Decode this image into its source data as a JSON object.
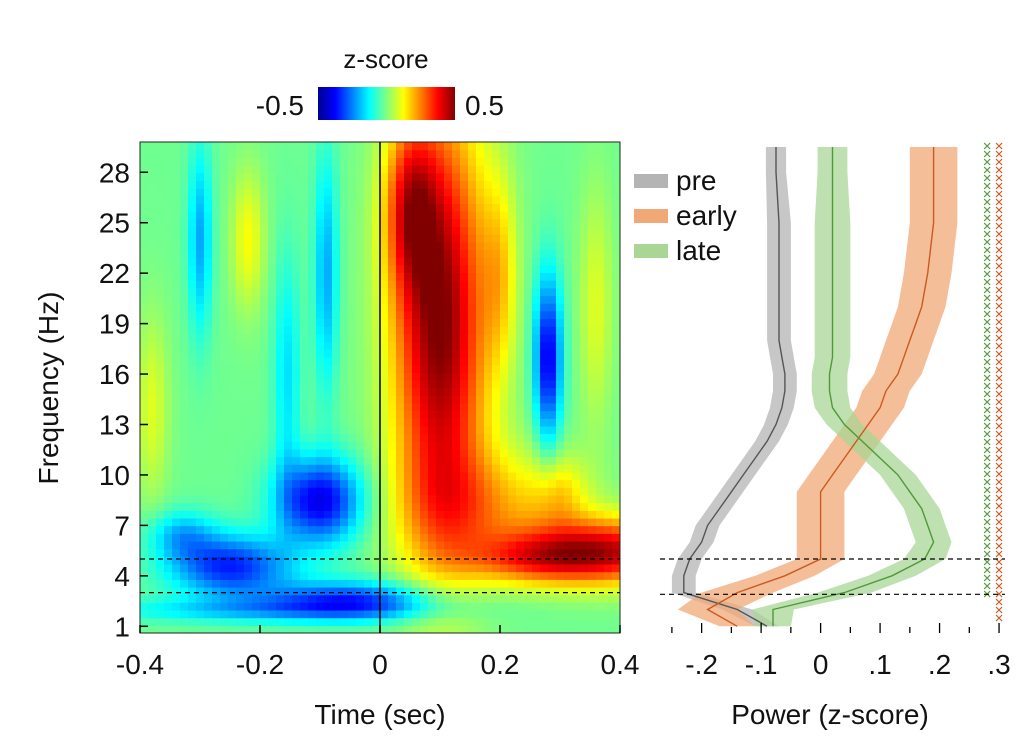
{
  "chart_data": [
    {
      "type": "heatmap",
      "title": "",
      "xlabel": "Time (sec)",
      "ylabel": "Frequency (Hz)",
      "xlim": [
        -0.4,
        0.4
      ],
      "ylim": [
        0.6,
        29.8
      ],
      "x_tick_labels": [
        "-0.4",
        "-0.2",
        "0",
        "0.2",
        "0.4"
      ],
      "x_ticks": [
        -0.4,
        -0.2,
        0,
        0.2,
        0.4
      ],
      "y_ticks": [
        1,
        4,
        7,
        10,
        13,
        16,
        19,
        22,
        25,
        28
      ],
      "y_tick_labels": [
        "1",
        "4",
        "7",
        "10",
        "13",
        "16",
        "19",
        "22",
        "25",
        "28"
      ],
      "vertical_line_at": 0,
      "dashed_lines_at_hz": [
        5,
        3
      ],
      "colorbar": {
        "title": "z-score",
        "min_label": "-0.5",
        "max_label": "0.5",
        "range": [
          -0.5,
          0.5
        ]
      },
      "blobs": [
        {
          "t": 0.1,
          "f": 19,
          "st": 0.055,
          "sf": 9,
          "v": 0.95
        },
        {
          "t": 0.05,
          "f": 26,
          "st": 0.03,
          "sf": 3.5,
          "v": 0.5
        },
        {
          "t": 0.18,
          "f": 8,
          "st": 0.1,
          "sf": 2.5,
          "v": 0.35
        },
        {
          "t": 0.38,
          "f": 5.5,
          "st": 0.1,
          "sf": 1.4,
          "v": 0.75
        },
        {
          "t": 0.26,
          "f": 5,
          "st": 0.08,
          "sf": 1.0,
          "v": 0.35
        },
        {
          "t": -0.1,
          "f": 8.5,
          "st": 0.05,
          "sf": 1.8,
          "v": -0.7
        },
        {
          "t": -0.25,
          "f": 4.6,
          "st": 0.07,
          "sf": 1.3,
          "v": -0.6
        },
        {
          "t": -0.05,
          "f": 2.6,
          "st": 0.1,
          "sf": 0.8,
          "v": -0.55
        },
        {
          "t": 0.28,
          "f": 17,
          "st": 0.016,
          "sf": 3.5,
          "v": -0.7
        },
        {
          "t": -0.3,
          "f": 24,
          "st": 0.014,
          "sf": 4.0,
          "v": -0.35
        },
        {
          "t": -0.09,
          "f": 22,
          "st": 0.014,
          "sf": 5.0,
          "v": -0.35
        },
        {
          "t": -0.155,
          "f": 16,
          "st": 0.016,
          "sf": 5.0,
          "v": -0.25
        },
        {
          "t": -0.33,
          "f": 6.5,
          "st": 0.04,
          "sf": 1.0,
          "v": -0.3
        },
        {
          "t": -0.2,
          "f": 2.0,
          "st": 0.2,
          "sf": 0.5,
          "v": -0.25
        },
        {
          "t": -0.22,
          "f": 24,
          "st": 0.02,
          "sf": 3.0,
          "v": 0.25
        },
        {
          "t": -0.38,
          "f": 14,
          "st": 0.02,
          "sf": 4.0,
          "v": 0.2
        },
        {
          "t": 0.2,
          "f": 22,
          "st": 0.02,
          "sf": 4.0,
          "v": 0.25
        },
        {
          "t": 0.36,
          "f": 20,
          "st": 0.02,
          "sf": 5.0,
          "v": 0.2
        },
        {
          "t": 0.3,
          "f": 9,
          "st": 0.03,
          "sf": 1.5,
          "v": 0.2
        }
      ]
    },
    {
      "type": "line",
      "xlabel": "Power (z-score)",
      "ylabel": "",
      "xlim": [
        -0.27,
        0.31
      ],
      "ylim": [
        0.6,
        29.8
      ],
      "x_ticks": [
        -0.2,
        -0.1,
        0,
        0.1,
        0.2,
        0.3
      ],
      "x_tick_labels": [
        "-.2",
        "-.1",
        "0",
        ".1",
        ".2",
        ".3"
      ],
      "dashed_lines_at_hz": [
        5,
        2.9
      ],
      "legend": {
        "position": "top-left",
        "entries": [
          "pre",
          "early",
          "late"
        ]
      },
      "freq": [
        1,
        2,
        3,
        4,
        5,
        6,
        7,
        8,
        9,
        10,
        11,
        12,
        13,
        14,
        15,
        16,
        17,
        18,
        19,
        20,
        22,
        25,
        28,
        29.5
      ],
      "series": [
        {
          "name": "pre",
          "color": "#555555",
          "band_color": "#b4b4b4",
          "mean": [
            -0.09,
            -0.14,
            -0.23,
            -0.23,
            -0.22,
            -0.2,
            -0.19,
            -0.17,
            -0.15,
            -0.13,
            -0.11,
            -0.09,
            -0.075,
            -0.065,
            -0.06,
            -0.06,
            -0.065,
            -0.07,
            -0.07,
            -0.07,
            -0.07,
            -0.07,
            -0.075,
            -0.075
          ],
          "sem": [
            0.02,
            0.025,
            0.02,
            0.02,
            0.02,
            0.02,
            0.02,
            0.02,
            0.02,
            0.02,
            0.02,
            0.02,
            0.02,
            0.02,
            0.02,
            0.02,
            0.02,
            0.02,
            0.02,
            0.02,
            0.02,
            0.02,
            0.017,
            0.017
          ]
        },
        {
          "name": "early",
          "color": "#cc5a1e",
          "band_color": "#f0a876",
          "mean": [
            -0.14,
            -0.19,
            -0.14,
            -0.06,
            0.0,
            0.0,
            0.0,
            0.0,
            0.0,
            0.02,
            0.04,
            0.06,
            0.08,
            0.1,
            0.11,
            0.13,
            0.14,
            0.15,
            0.16,
            0.17,
            0.18,
            0.19,
            0.19,
            0.19
          ],
          "sem": [
            0.03,
            0.05,
            0.06,
            0.05,
            0.04,
            0.04,
            0.04,
            0.04,
            0.04,
            0.04,
            0.04,
            0.04,
            0.04,
            0.04,
            0.04,
            0.04,
            0.04,
            0.04,
            0.04,
            0.04,
            0.04,
            0.04,
            0.04,
            0.04
          ]
        },
        {
          "name": "late",
          "color": "#4e9a3a",
          "band_color": "#a9d595",
          "mean": [
            -0.08,
            -0.08,
            0.04,
            0.12,
            0.175,
            0.19,
            0.18,
            0.17,
            0.15,
            0.13,
            0.1,
            0.07,
            0.04,
            0.02,
            0.015,
            0.015,
            0.02,
            0.02,
            0.02,
            0.02,
            0.02,
            0.02,
            0.02,
            0.02
          ],
          "sem": [
            0.03,
            0.035,
            0.045,
            0.04,
            0.035,
            0.03,
            0.03,
            0.03,
            0.03,
            0.03,
            0.03,
            0.03,
            0.03,
            0.03,
            0.03,
            0.03,
            0.03,
            0.03,
            0.03,
            0.03,
            0.03,
            0.03,
            0.025,
            0.025
          ]
        }
      ],
      "significance_markers": [
        {
          "series": "late",
          "color": "#4e9a3a",
          "x": 0.28,
          "from_hz": 2.9,
          "to_hz": 29.8,
          "symbol": "x"
        },
        {
          "series": "early",
          "color": "#cc5a1e",
          "x": 0.3,
          "from_hz": 1.2,
          "to_hz": 29.8,
          "symbol": "x"
        }
      ]
    }
  ]
}
